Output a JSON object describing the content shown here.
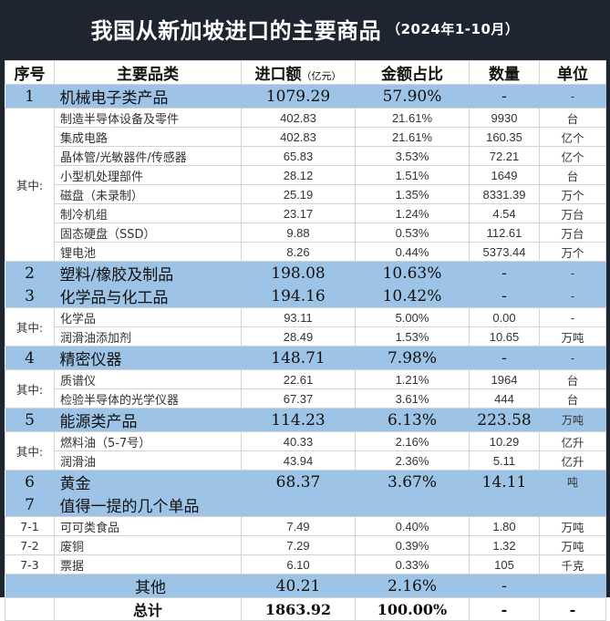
{
  "title": {
    "main": "我国从新加坡进口的主要商品",
    "period": "（2024年1-10月）"
  },
  "header": {
    "no": "序号",
    "category": "主要品类",
    "amount": "进口额",
    "amount_unit": "（亿元）",
    "share": "金额占比",
    "qty": "数量",
    "unit": "单位"
  },
  "colors": {
    "title_bg": "#1e2530",
    "highlight_row": "#9dc3e6"
  },
  "sections": [
    {
      "no": "1",
      "name": "机械电子类产品",
      "amount": "1079.29",
      "share": "57.90%",
      "qty": "-",
      "unit": "-",
      "sub_label": "其中:",
      "children": [
        {
          "name": "制造半导体设备及零件",
          "amount": "402.83",
          "share": "21.61%",
          "qty": "9930",
          "unit": "台"
        },
        {
          "name": "集成电路",
          "amount": "402.83",
          "share": "21.61%",
          "qty": "160.35",
          "unit": "亿个"
        },
        {
          "name": "晶体管/光敏器件/传感器",
          "amount": "65.83",
          "share": "3.53%",
          "qty": "72.21",
          "unit": "亿个"
        },
        {
          "name": "小型机处理部件",
          "amount": "28.12",
          "share": "1.51%",
          "qty": "1649",
          "unit": "台"
        },
        {
          "name": "磁盘（未录制）",
          "amount": "25.19",
          "share": "1.35%",
          "qty": "8331.39",
          "unit": "万个"
        },
        {
          "name": "制冷机组",
          "amount": "23.17",
          "share": "1.24%",
          "qty": "4.54",
          "unit": "万台"
        },
        {
          "name": "固态硬盘（SSD）",
          "amount": "9.88",
          "share": "0.53%",
          "qty": "112.61",
          "unit": "万台"
        },
        {
          "name": "锂电池",
          "amount": "8.26",
          "share": "0.44%",
          "qty": "5373.44",
          "unit": "万个"
        }
      ]
    },
    {
      "no": "2",
      "name": "塑料/橡胶及制品",
      "amount": "198.08",
      "share": "10.63%",
      "qty": "-",
      "unit": "-"
    },
    {
      "no": "3",
      "name": "化学品与化工品",
      "amount": "194.16",
      "share": "10.42%",
      "qty": "-",
      "unit": "-",
      "sub_label": "其中:",
      "children": [
        {
          "name": "化学品",
          "amount": "93.11",
          "share": "5.00%",
          "qty": "0.00",
          "unit": "-"
        },
        {
          "name": "润滑油添加剂",
          "amount": "28.49",
          "share": "1.53%",
          "qty": "10.65",
          "unit": "万吨"
        }
      ]
    },
    {
      "no": "4",
      "name": "精密仪器",
      "amount": "148.71",
      "share": "7.98%",
      "qty": "-",
      "unit": "-",
      "sub_label": "其中:",
      "children": [
        {
          "name": "质谱仪",
          "amount": "22.61",
          "share": "1.21%",
          "qty": "1964",
          "unit": "台"
        },
        {
          "name": "检验半导体的光学仪器",
          "amount": "67.37",
          "share": "3.61%",
          "qty": "444",
          "unit": "台"
        }
      ]
    },
    {
      "no": "5",
      "name": "能源类产品",
      "amount": "114.23",
      "share": "6.13%",
      "qty": "223.58",
      "unit": "万吨",
      "sub_label": "其中:",
      "children": [
        {
          "name": "燃料油（5-7号）",
          "amount": "40.33",
          "share": "2.16%",
          "qty": "10.29",
          "unit": "亿升"
        },
        {
          "name": "润滑油",
          "amount": "43.94",
          "share": "2.36%",
          "qty": "5.11",
          "unit": "亿升"
        }
      ]
    },
    {
      "no": "6",
      "name": "黄金",
      "amount": "68.37",
      "share": "3.67%",
      "qty": "14.11",
      "unit": "吨"
    },
    {
      "no": "7",
      "name": "值得一提的几个单品",
      "amount": "",
      "share": "",
      "qty": "",
      "unit": "",
      "children": [
        {
          "no": "7-1",
          "name": "可可类食品",
          "amount": "7.49",
          "share": "0.40%",
          "qty": "1.80",
          "unit": "万吨"
        },
        {
          "no": "7-2",
          "name": "废铜",
          "amount": "7.29",
          "share": "0.39%",
          "qty": "1.32",
          "unit": "万吨"
        },
        {
          "no": "7-3",
          "name": "票据",
          "amount": "6.10",
          "share": "0.33%",
          "qty": "105",
          "unit": "千克"
        }
      ]
    }
  ],
  "other": {
    "name": "其他",
    "amount": "40.21",
    "share": "2.16%",
    "qty": "-"
  },
  "total": {
    "name": "总计",
    "amount": "1863.92",
    "share": "100.00%",
    "qty": "-",
    "unit": "-"
  }
}
